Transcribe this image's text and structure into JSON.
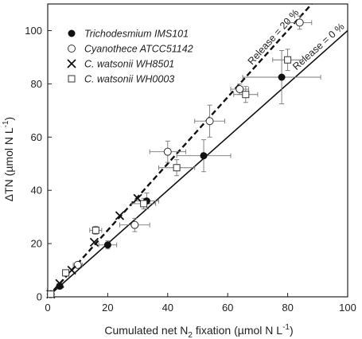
{
  "chart_data": {
    "type": "scatter",
    "xlabel": {
      "pre": "Cumulated net N",
      "sub": "2",
      "post": " fixation (µmol N L",
      "sup": "-1",
      "end": ")"
    },
    "ylabel": {
      "pre": "ΔTN  (µmol N L",
      "sup": "-1",
      "end": ")"
    },
    "xlim": [
      0,
      100
    ],
    "ylim": [
      0,
      110
    ],
    "xticks": [
      "0",
      "20",
      "40",
      "60",
      "80",
      "100"
    ],
    "yticks": [
      "0",
      "20",
      "40",
      "60",
      "80",
      "100"
    ],
    "grid": false,
    "legend_position": "top-left",
    "reference_lines": [
      {
        "label": "Release = 20 %",
        "slope": 1.25,
        "style": "dashed"
      },
      {
        "label": "Release = 0 %",
        "slope": 1.0,
        "style": "solid"
      }
    ],
    "series": [
      {
        "name": "Trichodesmium IMS101",
        "marker": "filled-circle",
        "points": [
          {
            "x": 1,
            "y": 1,
            "xerr": 0.5,
            "yerr": 0.5
          },
          {
            "x": 4,
            "y": 4,
            "xerr": 1,
            "yerr": 1
          },
          {
            "x": 20,
            "y": 19.5,
            "xerr": 3,
            "yerr": 1.5
          },
          {
            "x": 33,
            "y": 36,
            "xerr": 4,
            "yerr": 3
          },
          {
            "x": 52,
            "y": 53,
            "xerr": 9,
            "yerr": 6
          },
          {
            "x": 78,
            "y": 82.5,
            "xerr": 13,
            "yerr": 10
          }
        ]
      },
      {
        "name": "Cyanothece ATCC51142",
        "marker": "open-circle",
        "points": [
          {
            "x": 1,
            "y": 1,
            "xerr": 0.5,
            "yerr": 0.5
          },
          {
            "x": 10,
            "y": 12,
            "xerr": 1.5,
            "yerr": 1
          },
          {
            "x": 29,
            "y": 27,
            "xerr": 5,
            "yerr": 2.5
          },
          {
            "x": 40,
            "y": 54.5,
            "xerr": 6,
            "yerr": 4
          },
          {
            "x": 54,
            "y": 66,
            "xerr": 5,
            "yerr": 6
          },
          {
            "x": 64,
            "y": 78,
            "xerr": 3,
            "yerr": 2
          },
          {
            "x": 84,
            "y": 103,
            "xerr": 4,
            "yerr": 2.5
          }
        ]
      },
      {
        "name": "C. watsonii WH8501",
        "marker": "cross",
        "points": [
          {
            "x": 1,
            "y": 1
          },
          {
            "x": 4,
            "y": 5
          },
          {
            "x": 8,
            "y": 10
          },
          {
            "x": 15.5,
            "y": 20.5
          },
          {
            "x": 24,
            "y": 30.5
          },
          {
            "x": 30,
            "y": 37
          }
        ]
      },
      {
        "name": "C. watsonii WH0003",
        "marker": "open-square",
        "points": [
          {
            "x": 1,
            "y": 1
          },
          {
            "x": 6,
            "y": 9,
            "xerr": 1,
            "yerr": 1
          },
          {
            "x": 16,
            "y": 25,
            "xerr": 2,
            "yerr": 1.5
          },
          {
            "x": 32,
            "y": 35,
            "xerr": 4,
            "yerr": 2
          },
          {
            "x": 43,
            "y": 48.5,
            "xerr": 6,
            "yerr": 3
          },
          {
            "x": 66,
            "y": 76,
            "xerr": 4,
            "yerr": 3
          },
          {
            "x": 80,
            "y": 89,
            "xerr": 5,
            "yerr": 4
          }
        ]
      }
    ]
  }
}
